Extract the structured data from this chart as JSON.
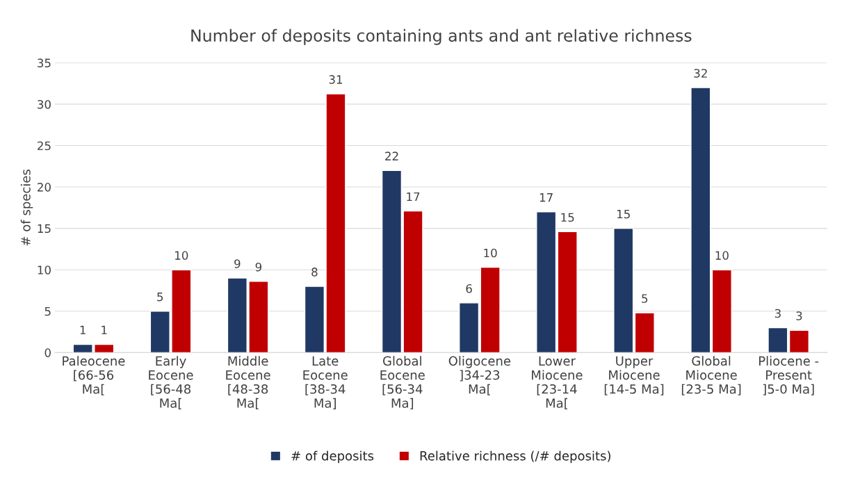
{
  "chart_data": {
    "type": "bar",
    "title": "Number of deposits containing ants and ant relative richness",
    "ylabel": "# of species",
    "categories": [
      "Paleocene\n[66-56\nMa[",
      "Early\nEocene\n[56-48\nMa[",
      "Middle\nEocene\n[48-38\nMa[",
      "Late\nEocene\n[38-34\nMa]",
      "Global\nEocene\n[56-34\nMa]",
      "Oligocene\n]34-23\nMa[",
      "Lower\nMiocene\n[23-14\nMa[",
      "Upper\nMiocene\n[14-5 Ma]",
      "Global\nMiocene\n[23-5 Ma]",
      "Pliocene -\nPresent\n]5-0 Ma]"
    ],
    "series": [
      {
        "name": "# of deposits",
        "color": "#203864",
        "values": [
          1,
          5,
          9,
          8,
          22,
          6,
          17,
          15,
          32,
          3
        ],
        "value_labels": [
          "1",
          "5",
          "9",
          "8",
          "22",
          "6",
          "17",
          "15",
          "32",
          "3"
        ]
      },
      {
        "name": "Relative richness (/# deposits)",
        "color": "#c00000",
        "values": [
          1,
          10,
          8.6,
          31.25,
          17.1,
          10.3,
          14.6,
          4.8,
          10,
          2.7
        ],
        "value_labels": [
          "1",
          "10",
          "9",
          "31",
          "17",
          "10",
          "15",
          "5",
          "10",
          "3"
        ]
      }
    ],
    "ylim": [
      0,
      35
    ],
    "yticks": [
      0,
      5,
      10,
      15,
      20,
      25,
      30,
      35
    ],
    "grid": "y",
    "legend": "bottom"
  }
}
